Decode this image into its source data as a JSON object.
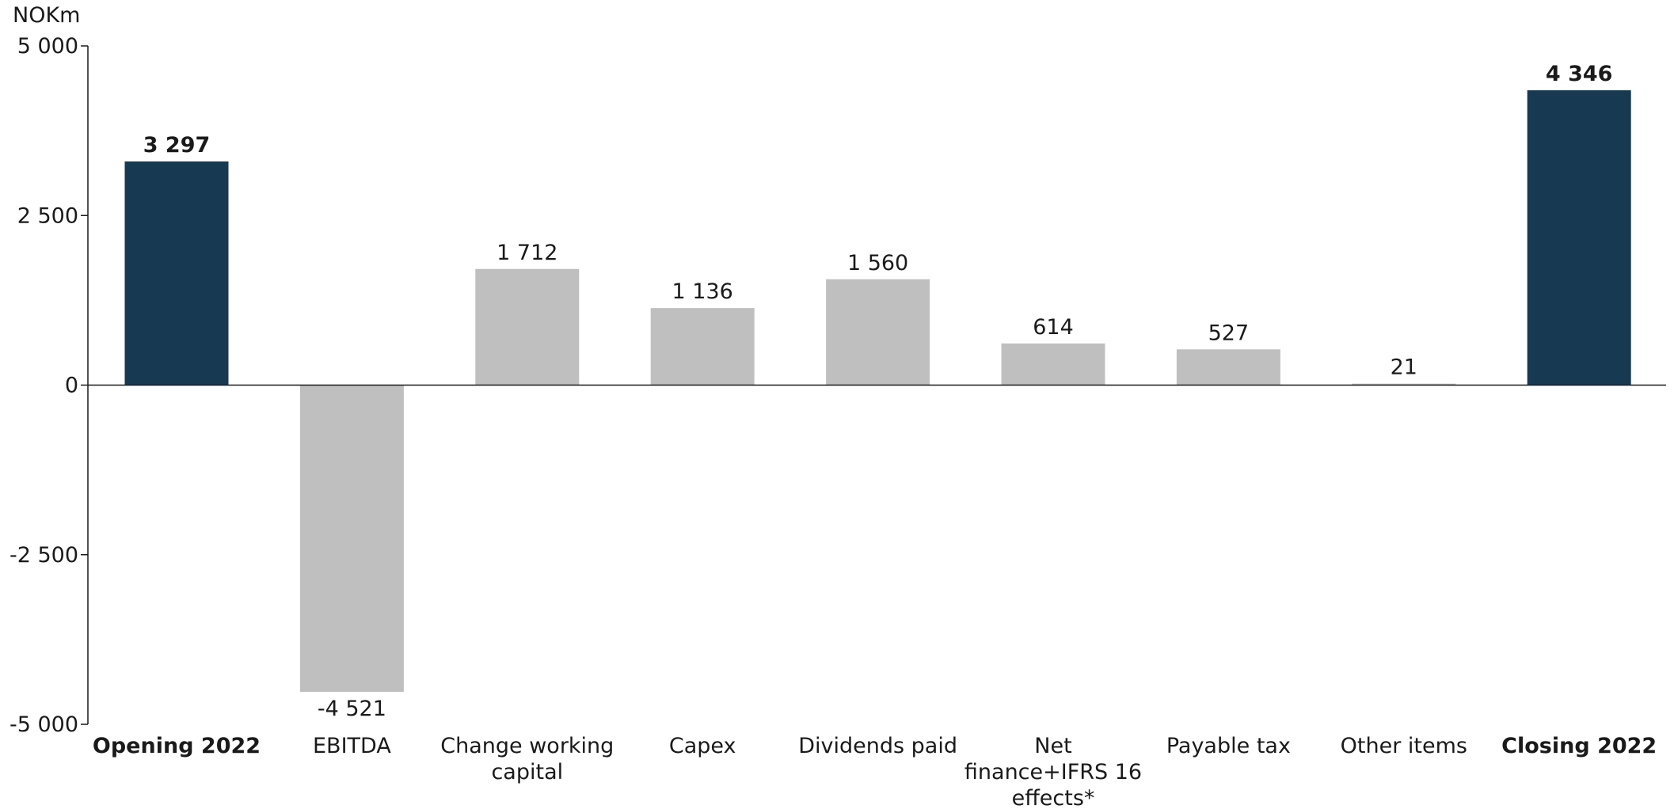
{
  "chart_data": {
    "type": "bar",
    "ylabel": "NOKm",
    "ylim": [
      -5000,
      5000
    ],
    "yticks": [
      5000,
      2500,
      0,
      -2500,
      -5000
    ],
    "ytick_labels": [
      "5 000",
      "2 500",
      "0",
      "-2 500",
      "-5 000"
    ],
    "grid": false,
    "legend": "none",
    "categories": [
      "Opening 2022",
      "EBITDA",
      "Change working capital",
      "Capex",
      "Dividends paid",
      "Net finance+IFRS 16 effects*",
      "Payable tax",
      "Other items",
      "Closing 2022"
    ],
    "category_lines": [
      [
        "Opening 2022"
      ],
      [
        "EBITDA"
      ],
      [
        "Change working",
        "capital"
      ],
      [
        "Capex"
      ],
      [
        "Dividends paid"
      ],
      [
        "Net",
        "finance+IFRS 16",
        "effects*"
      ],
      [
        "Payable tax"
      ],
      [
        "Other items"
      ],
      [
        "Closing 2022"
      ]
    ],
    "values": [
      3297,
      -4521,
      1712,
      1136,
      1560,
      614,
      527,
      21,
      4346
    ],
    "value_labels": [
      "3 297",
      "-4 521",
      "1 712",
      "1 136",
      "1 560",
      "614",
      "527",
      "21",
      "4 346"
    ],
    "is_total": [
      true,
      false,
      false,
      false,
      false,
      false,
      false,
      false,
      true
    ],
    "colors": {
      "total": "#173a52",
      "change": "#bfbfbf",
      "axis": "#1a1a1a"
    }
  }
}
